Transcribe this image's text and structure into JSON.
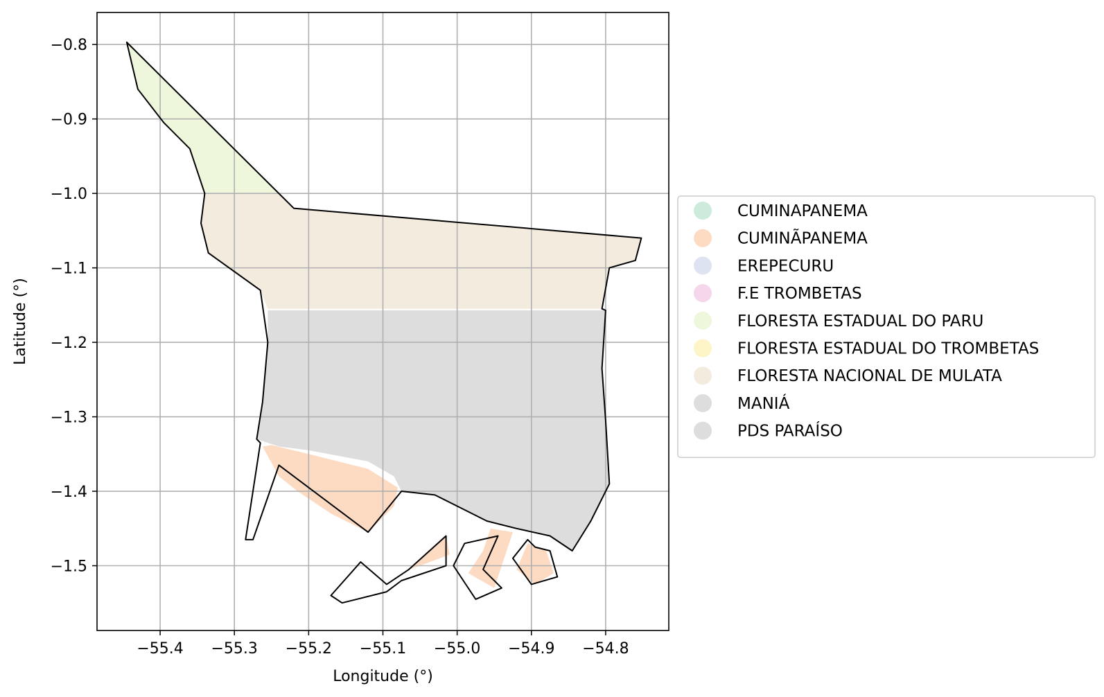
{
  "chart_data": {
    "type": "map",
    "title": "",
    "xlabel": "Longitude (°)",
    "ylabel": "Latitude (°)",
    "xlim": [
      -55.485,
      -54.715
    ],
    "ylim": [
      -1.587,
      -0.757
    ],
    "xticks": [
      {
        "v": -55.4,
        "label": "−55.4"
      },
      {
        "v": -55.3,
        "label": "−55.3"
      },
      {
        "v": -55.2,
        "label": "−55.2"
      },
      {
        "v": -55.1,
        "label": "−55.1"
      },
      {
        "v": -55.0,
        "label": "−55.0"
      },
      {
        "v": -54.9,
        "label": "−54.9"
      },
      {
        "v": -54.8,
        "label": "−54.8"
      }
    ],
    "yticks": [
      {
        "v": -0.8,
        "label": "−0.8"
      },
      {
        "v": -0.9,
        "label": "−0.9"
      },
      {
        "v": -1.0,
        "label": "−1.0"
      },
      {
        "v": -1.1,
        "label": "−1.1"
      },
      {
        "v": -1.2,
        "label": "−1.2"
      },
      {
        "v": -1.3,
        "label": "−1.3"
      },
      {
        "v": -1.4,
        "label": "−1.4"
      },
      {
        "v": -1.5,
        "label": "−1.5"
      }
    ],
    "grid": true,
    "legend_position": "right",
    "legend": [
      {
        "name": "CUMINAPANEMA",
        "color": "#cdebdd"
      },
      {
        "name": "CUMINÃPANEMA",
        "color": "#fddbc3"
      },
      {
        "name": "EREPECURU",
        "color": "#dde3f1"
      },
      {
        "name": "F.E TROMBETAS",
        "color": "#f6d6ea"
      },
      {
        "name": "FLORESTA ESTADUAL DO PARU",
        "color": "#eef7dc"
      },
      {
        "name": "FLORESTA ESTADUAL DO TROMBETAS",
        "color": "#fdf4c7"
      },
      {
        "name": "FLORESTA NACIONAL DE MULATA",
        "color": "#f4ebdf"
      },
      {
        "name": "MANIÁ",
        "color": "#dddddd"
      },
      {
        "name": "PDS PARAÍSO",
        "color": "#dddddd"
      }
    ],
    "regions": [
      {
        "name": "FLORESTA ESTADUAL DO PARU",
        "color": "#eef7dc",
        "coords": [
          [
            -55.445,
            -0.797
          ],
          [
            -55.24,
            -1.0
          ],
          [
            -55.34,
            -1.0
          ],
          [
            -55.36,
            -0.94
          ],
          [
            -55.395,
            -0.905
          ],
          [
            -55.43,
            -0.86
          ]
        ]
      },
      {
        "name": "FLORESTA NACIONAL DE MULATA",
        "color": "#f4ebdf",
        "coords": [
          [
            -55.34,
            -1.0
          ],
          [
            -55.24,
            -1.0
          ],
          [
            -55.22,
            -1.02
          ],
          [
            -54.752,
            -1.06
          ],
          [
            -54.76,
            -1.09
          ],
          [
            -54.795,
            -1.1
          ],
          [
            -54.805,
            -1.155
          ],
          [
            -55.255,
            -1.155
          ],
          [
            -55.265,
            -1.13
          ],
          [
            -55.3,
            -1.105
          ],
          [
            -55.335,
            -1.08
          ],
          [
            -55.345,
            -1.04
          ]
        ]
      },
      {
        "name": "MANIÁ",
        "color": "#dddddd",
        "coords": [
          [
            -55.255,
            -1.157
          ],
          [
            -54.8,
            -1.157
          ],
          [
            -54.805,
            -1.235
          ],
          [
            -54.8,
            -1.305
          ],
          [
            -54.795,
            -1.39
          ],
          [
            -54.82,
            -1.44
          ],
          [
            -54.845,
            -1.48
          ],
          [
            -54.875,
            -1.46
          ],
          [
            -54.92,
            -1.45
          ],
          [
            -54.96,
            -1.44
          ],
          [
            -54.99,
            -1.425
          ],
          [
            -55.03,
            -1.405
          ],
          [
            -55.075,
            -1.4
          ],
          [
            -55.085,
            -1.38
          ],
          [
            -55.12,
            -1.36
          ],
          [
            -55.2,
            -1.345
          ],
          [
            -55.24,
            -1.34
          ],
          [
            -55.27,
            -1.33
          ],
          [
            -55.262,
            -1.28
          ],
          [
            -55.255,
            -1.2
          ]
        ]
      },
      {
        "name": "CUMINÃPANEMA",
        "color": "#fddbc3",
        "coords": [
          [
            -55.262,
            -1.34
          ],
          [
            -55.24,
            -1.38
          ],
          [
            -55.215,
            -1.4
          ],
          [
            -55.17,
            -1.43
          ],
          [
            -55.12,
            -1.455
          ],
          [
            -55.085,
            -1.42
          ],
          [
            -55.08,
            -1.395
          ],
          [
            -55.12,
            -1.37
          ],
          [
            -55.2,
            -1.35
          ],
          [
            -55.25,
            -1.338
          ]
        ]
      },
      {
        "name": "CUMINÃPANEMA",
        "color": "#fddbc3",
        "coords": [
          [
            -55.065,
            -1.505
          ],
          [
            -55.015,
            -1.46
          ],
          [
            -55.01,
            -1.485
          ],
          [
            -55.05,
            -1.5
          ]
        ]
      },
      {
        "name": "CUMINÃPANEMA",
        "color": "#fddbc3",
        "coords": [
          [
            -54.955,
            -1.45
          ],
          [
            -54.925,
            -1.455
          ],
          [
            -54.95,
            -1.53
          ],
          [
            -54.985,
            -1.51
          ],
          [
            -54.965,
            -1.48
          ]
        ]
      },
      {
        "name": "CUMINÃPANEMA",
        "color": "#fddbc3",
        "coords": [
          [
            -54.905,
            -1.47
          ],
          [
            -54.88,
            -1.48
          ],
          [
            -54.87,
            -1.51
          ],
          [
            -54.895,
            -1.525
          ],
          [
            -54.92,
            -1.505
          ]
        ]
      }
    ],
    "boundary": [
      [
        -55.445,
        -0.797
      ],
      [
        -55.22,
        -1.02
      ],
      [
        -54.752,
        -1.06
      ],
      [
        -54.76,
        -1.09
      ],
      [
        -54.795,
        -1.1
      ],
      [
        -54.805,
        -1.155
      ],
      [
        -54.8,
        -1.157
      ],
      [
        -54.805,
        -1.235
      ],
      [
        -54.8,
        -1.305
      ],
      [
        -54.795,
        -1.39
      ],
      [
        -54.82,
        -1.44
      ],
      [
        -54.845,
        -1.48
      ],
      [
        -54.875,
        -1.46
      ],
      [
        -54.92,
        -1.45
      ],
      [
        -54.96,
        -1.44
      ],
      [
        -54.99,
        -1.425
      ],
      [
        -55.03,
        -1.405
      ],
      [
        -55.075,
        -1.4
      ],
      [
        -55.12,
        -1.455
      ],
      [
        -55.24,
        -1.365
      ],
      [
        -55.275,
        -1.465
      ],
      [
        -55.285,
        -1.465
      ],
      [
        -55.265,
        -1.335
      ],
      [
        -55.27,
        -1.33
      ],
      [
        -55.262,
        -1.28
      ],
      [
        -55.255,
        -1.2
      ],
      [
        -55.265,
        -1.13
      ],
      [
        -55.3,
        -1.105
      ],
      [
        -55.335,
        -1.08
      ],
      [
        -55.345,
        -1.04
      ],
      [
        -55.34,
        -1.0
      ],
      [
        -55.36,
        -0.94
      ],
      [
        -55.395,
        -0.905
      ],
      [
        -55.43,
        -0.86
      ]
    ],
    "extra_outlines": [
      [
        [
          -55.17,
          -1.54
        ],
        [
          -55.13,
          -1.495
        ],
        [
          -55.095,
          -1.525
        ],
        [
          -55.065,
          -1.505
        ],
        [
          -55.015,
          -1.46
        ],
        [
          -55.015,
          -1.5
        ],
        [
          -55.075,
          -1.52
        ],
        [
          -55.095,
          -1.535
        ],
        [
          -55.155,
          -1.55
        ]
      ],
      [
        [
          -54.99,
          -1.47
        ],
        [
          -54.945,
          -1.46
        ],
        [
          -54.965,
          -1.505
        ],
        [
          -54.94,
          -1.53
        ],
        [
          -54.975,
          -1.545
        ],
        [
          -55.005,
          -1.5
        ]
      ],
      [
        [
          -54.905,
          -1.465
        ],
        [
          -54.895,
          -1.475
        ],
        [
          -54.875,
          -1.48
        ],
        [
          -54.865,
          -1.515
        ],
        [
          -54.9,
          -1.525
        ],
        [
          -54.925,
          -1.49
        ]
      ]
    ]
  }
}
